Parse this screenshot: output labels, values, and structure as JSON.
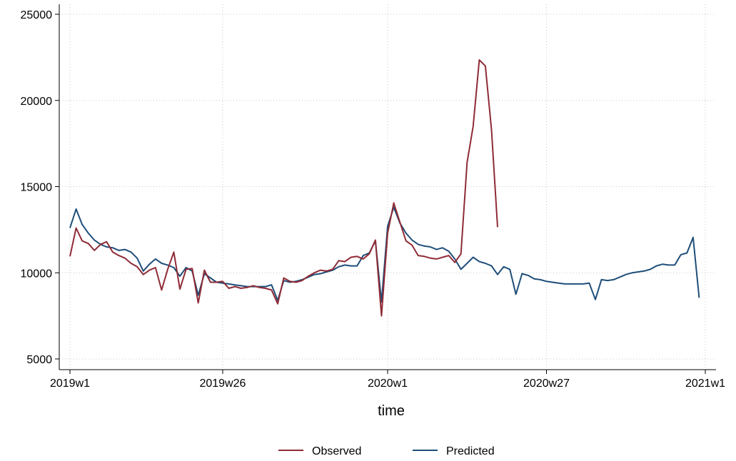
{
  "chart_data": {
    "type": "line",
    "xlabel": "time",
    "ylabel": "",
    "xlim": [
      1,
      105
    ],
    "ylim": [
      5000,
      25000
    ],
    "x_ticks": [
      {
        "x": 1,
        "label": "2019w1"
      },
      {
        "x": 26,
        "label": "2019w26"
      },
      {
        "x": 53,
        "label": "2020w1"
      },
      {
        "x": 79,
        "label": "2020w27"
      },
      {
        "x": 105,
        "label": "2021w1"
      }
    ],
    "y_ticks": [
      5000,
      10000,
      15000,
      20000,
      25000
    ],
    "grid": true,
    "legend_position": "bottom",
    "series": [
      {
        "name": "Observed",
        "color": "#8f2b36",
        "values": [
          10950,
          12600,
          11850,
          11700,
          11300,
          11650,
          11800,
          11200,
          11000,
          10850,
          10550,
          10350,
          9900,
          10150,
          10300,
          9000,
          10200,
          11200,
          9050,
          10200,
          10250,
          8250,
          10150,
          9450,
          9450,
          9500,
          9100,
          9200,
          9100,
          9150,
          9250,
          9150,
          9100,
          9000,
          8200,
          9700,
          9500,
          9450,
          9550,
          9800,
          10000,
          10150,
          10100,
          10200,
          10700,
          10650,
          10900,
          10950,
          10800,
          11100,
          11900,
          7500,
          12300,
          14050,
          12950,
          11850,
          11600,
          11000,
          10950,
          10850,
          10800,
          10900,
          11000,
          10600,
          11100,
          16400,
          18500,
          22350,
          22000,
          18300,
          12650
        ]
      },
      {
        "name": "Predicted",
        "color": "#1f4e79",
        "values": [
          12600,
          13700,
          12800,
          12300,
          11900,
          11650,
          11500,
          11450,
          11300,
          11350,
          11200,
          10850,
          10100,
          10500,
          10800,
          10550,
          10450,
          10300,
          9800,
          10300,
          10100,
          8700,
          9950,
          9700,
          9450,
          9400,
          9350,
          9300,
          9250,
          9200,
          9200,
          9200,
          9200,
          9300,
          8400,
          9550,
          9450,
          9500,
          9600,
          9750,
          9900,
          9950,
          10050,
          10150,
          10350,
          10450,
          10400,
          10400,
          11000,
          11150,
          11850,
          8300,
          12700,
          13800,
          12900,
          12300,
          11900,
          11650,
          11550,
          11500,
          11350,
          11450,
          11250,
          10800,
          10200,
          10550,
          10900,
          10650,
          10550,
          10400,
          9900,
          10350,
          10200,
          8750,
          9950,
          9850,
          9650,
          9600,
          9500,
          9450,
          9400,
          9350,
          9350,
          9350,
          9350,
          9400,
          8450,
          9600,
          9550,
          9600,
          9750,
          9900,
          10000,
          10050,
          10100,
          10200,
          10400,
          10500,
          10450,
          10450,
          11050,
          11150,
          12050,
          8550
        ]
      }
    ]
  }
}
